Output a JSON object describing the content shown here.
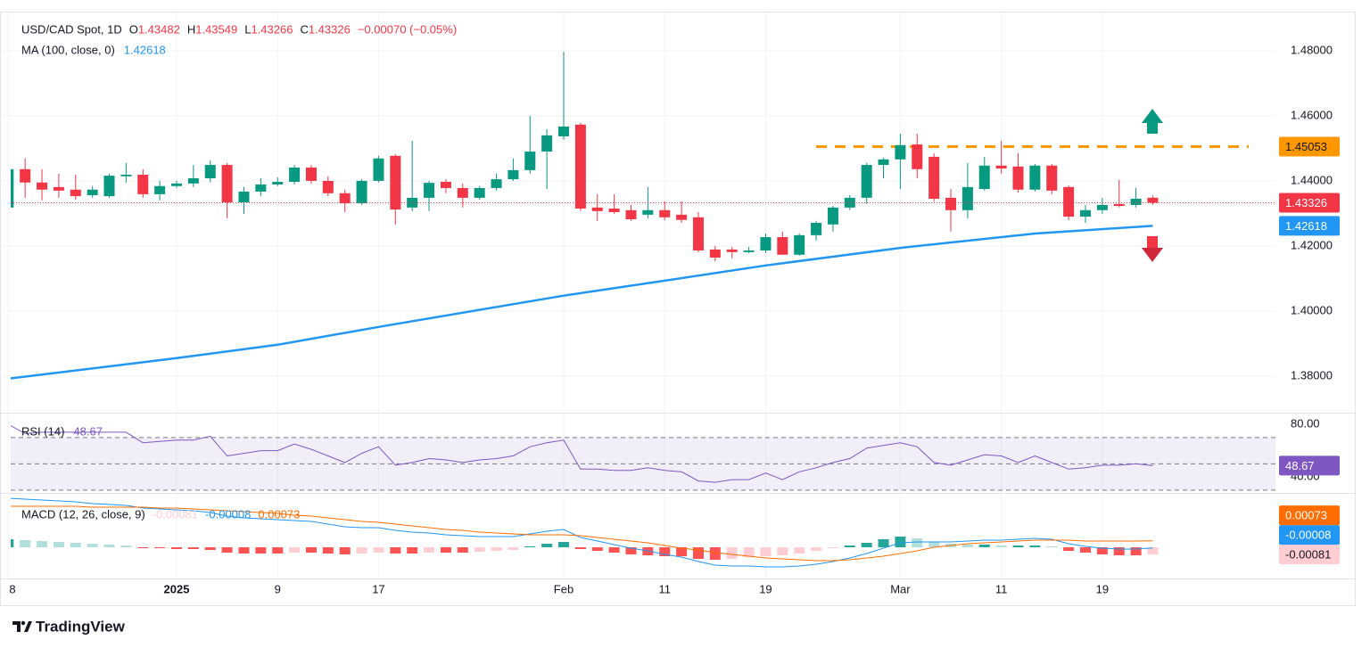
{
  "chart_data": [
    {
      "type": "candlestick",
      "title": "USD/CAD Spot, 1D",
      "ohlc_prefixes": [
        "O",
        "H",
        "L",
        "C"
      ],
      "change_label": "−0.00070 (−0.05%)",
      "categories": [
        "8",
        null,
        null,
        null,
        null,
        null,
        null,
        null,
        null,
        null,
        "2025",
        null,
        null,
        null,
        null,
        null,
        "9",
        null,
        null,
        null,
        null,
        null,
        "17",
        null,
        null,
        null,
        null,
        null,
        null,
        null,
        null,
        null,
        null,
        "Feb",
        null,
        null,
        null,
        null,
        null,
        "11",
        null,
        null,
        null,
        null,
        null,
        "19",
        null,
        null,
        null,
        null,
        null,
        null,
        null,
        "Mar",
        null,
        null,
        null,
        null,
        null,
        "11",
        null,
        null,
        null,
        null,
        null,
        "19",
        null,
        null,
        null
      ],
      "open": [
        1.4318,
        1.4436,
        1.4395,
        1.4381,
        1.4373,
        1.4356,
        1.4353,
        1.4414,
        1.4419,
        1.4359,
        1.4384,
        1.4392,
        1.4408,
        1.4449,
        1.4334,
        1.4367,
        1.4389,
        1.4397,
        1.4441,
        1.44,
        1.4362,
        1.4331,
        1.44,
        1.4477,
        1.4318,
        1.4348,
        1.4397,
        1.4378,
        1.4348,
        1.4378,
        1.4405,
        1.4433,
        1.449,
        1.4537,
        1.4573,
        1.4318,
        1.4315,
        1.431,
        1.4296,
        1.431,
        1.4296,
        1.4288,
        1.4189,
        1.4189,
        1.4181,
        1.4186,
        1.4227,
        1.4173,
        1.4233,
        1.4266,
        1.4318,
        1.4348,
        1.4449,
        1.4466,
        1.4512,
        1.4474,
        1.4348,
        1.431,
        1.4375,
        1.4447,
        1.4444,
        1.4373,
        1.4447,
        1.4381,
        1.429,
        1.431,
        1.4329,
        1.4326,
        1.43482
      ],
      "high": [
        1.4445,
        1.4469,
        1.4436,
        1.4422,
        1.4419,
        1.4384,
        1.4422,
        1.4455,
        1.4436,
        1.44,
        1.44,
        1.4449,
        1.4463,
        1.4455,
        1.4381,
        1.4408,
        1.4411,
        1.4449,
        1.4449,
        1.4414,
        1.4373,
        1.4405,
        1.4477,
        1.4482,
        1.4523,
        1.44,
        1.4405,
        1.4392,
        1.4384,
        1.4422,
        1.4469,
        1.46,
        1.4559,
        1.4797,
        1.4578,
        1.4359,
        1.4359,
        1.4326,
        1.4381,
        1.4337,
        1.4337,
        1.4304,
        1.42,
        1.4197,
        1.4197,
        1.4238,
        1.4244,
        1.4238,
        1.4277,
        1.4323,
        1.4356,
        1.4455,
        1.4471,
        1.4545,
        1.4545,
        1.4485,
        1.4375,
        1.4455,
        1.4474,
        1.4523,
        1.4485,
        1.4452,
        1.4452,
        1.4386,
        1.4326,
        1.4348,
        1.4403,
        1.4378,
        1.43549
      ],
      "low": [
        1.431,
        1.4348,
        1.434,
        1.4348,
        1.4342,
        1.4348,
        1.4348,
        1.4395,
        1.4348,
        1.434,
        1.4378,
        1.4381,
        1.4395,
        1.4285,
        1.4299,
        1.4353,
        1.4384,
        1.4389,
        1.4392,
        1.4353,
        1.4304,
        1.4326,
        1.4395,
        1.4266,
        1.4307,
        1.4307,
        1.4362,
        1.4318,
        1.4342,
        1.437,
        1.44,
        1.4422,
        1.4375,
        1.4526,
        1.4307,
        1.4277,
        1.4299,
        1.4277,
        1.4285,
        1.4279,
        1.4271,
        1.4181,
        1.4153,
        1.4162,
        1.4178,
        1.4178,
        1.4173,
        1.417,
        1.4216,
        1.4244,
        1.431,
        1.4329,
        1.4408,
        1.4375,
        1.4408,
        1.4337,
        1.4244,
        1.4285,
        1.437,
        1.4422,
        1.4364,
        1.4367,
        1.4359,
        1.4279,
        1.4271,
        1.4299,
        1.4318,
        1.4318,
        1.43266
      ],
      "close": [
        1.4436,
        1.4395,
        1.4373,
        1.437,
        1.4353,
        1.4373,
        1.4416,
        1.4419,
        1.4359,
        1.4384,
        1.4392,
        1.4408,
        1.4449,
        1.4334,
        1.4367,
        1.4389,
        1.4397,
        1.4441,
        1.44,
        1.4362,
        1.4331,
        1.44,
        1.4469,
        1.4312,
        1.4348,
        1.4394,
        1.4378,
        1.4348,
        1.4378,
        1.4405,
        1.4433,
        1.449,
        1.454,
        1.4567,
        1.4315,
        1.4307,
        1.4304,
        1.4282,
        1.431,
        1.4288,
        1.428,
        1.4186,
        1.4164,
        1.4181,
        1.4186,
        1.4227,
        1.4173,
        1.4233,
        1.4271,
        1.4318,
        1.4348,
        1.4449,
        1.4466,
        1.451,
        1.4436,
        1.4345,
        1.431,
        1.4381,
        1.4447,
        1.4438,
        1.4373,
        1.4447,
        1.437,
        1.429,
        1.431,
        1.4326,
        1.4323,
        1.4345,
        1.43326
      ],
      "up_color": "#089981",
      "down_color": "#f23645",
      "series": [
        {
          "name": "MA (100, close, 0)",
          "color": "#2196f3",
          "x": [
            0,
            10,
            16,
            22,
            33,
            39,
            45,
            53,
            61,
            68
          ],
          "values": [
            1.3792,
            1.3855,
            1.3896,
            1.3951,
            1.4047,
            1.4093,
            1.414,
            1.4194,
            1.4238,
            1.42618
          ]
        }
      ],
      "level": {
        "value": 1.45053,
        "color": "#ff9800"
      },
      "ylim": [
        1.369,
        1.4915
      ],
      "yticks": [
        {
          "value": 1.38,
          "label": "1.38000"
        },
        {
          "value": 1.4,
          "label": "1.40000"
        },
        {
          "value": 1.42,
          "label": "1.42000"
        },
        {
          "value": 1.44,
          "label": "1.44000"
        },
        {
          "value": 1.46,
          "label": "1.46000"
        },
        {
          "value": 1.48,
          "label": "1.48000"
        }
      ],
      "grid": true
    },
    {
      "type": "rsi",
      "series": [
        {
          "name": "RSI (14)",
          "color": "#7e57c2",
          "values": [
            80,
            73,
            74,
            74,
            74,
            74,
            74,
            74,
            66,
            67,
            68,
            68,
            71,
            56,
            58,
            60,
            60,
            65,
            61,
            56,
            51,
            58,
            63,
            49,
            51,
            54,
            53,
            51,
            53,
            54,
            56,
            63,
            66,
            68,
            46,
            46,
            45,
            45,
            47,
            45,
            44,
            37,
            36,
            38,
            38,
            43,
            38,
            44,
            47,
            51,
            54,
            62,
            64,
            66,
            63,
            51,
            49,
            53,
            57,
            56,
            51,
            56,
            51,
            46,
            47,
            49,
            49,
            50,
            48.67
          ]
        }
      ],
      "levels": [
        70,
        50,
        30
      ],
      "ylim": [
        28.6,
        87.5
      ],
      "yticks": [
        {
          "value": 40,
          "label": "40.00"
        },
        {
          "value": 80,
          "label": "80.00"
        }
      ]
    },
    {
      "type": "macd",
      "title": "MACD (12, 26, close, 9)",
      "series": [
        {
          "kind": "histogram",
          "colors": [
            "#26a69a",
            "#b2dfdb",
            "#ff5252",
            "#ffcdd2"
          ],
          "values": [
            0.0009,
            0.0008,
            0.0007,
            0.0006,
            0.0005,
            0.0004,
            0.0003,
            0.0002,
            -0.0001,
            -0.0001,
            -0.0002,
            -0.0002,
            -0.0003,
            -0.0006,
            -0.0007,
            -0.0007,
            -0.0007,
            -0.0006,
            -0.0006,
            -0.0007,
            -0.0008,
            -0.0007,
            -0.0006,
            -0.0007,
            -0.0007,
            -0.0006,
            -0.0006,
            -0.0006,
            -0.0005,
            -0.0004,
            -0.0003,
            0.0001,
            0.0004,
            0.0006,
            -0.0002,
            -0.0004,
            -0.0006,
            -0.0008,
            -0.0009,
            -0.001,
            -0.001,
            -0.0013,
            -0.0014,
            -0.0013,
            -0.0011,
            -0.001,
            -0.0009,
            -0.0007,
            -0.0004,
            -0.0001,
            0.0002,
            0.0005,
            0.0009,
            0.0012,
            0.001,
            0.0006,
            0.0004,
            0.0003,
            0.0003,
            0.0002,
            0.0002,
            0.0002,
            0.0001,
            -0.0004,
            -0.0006,
            -0.0008,
            -0.0009,
            -0.0009,
            -0.00081
          ]
        },
        {
          "kind": "line",
          "color": "#2196f3",
          "values": [
            0.0055,
            0.0054,
            0.0053,
            0.0052,
            0.0051,
            0.0049,
            0.0048,
            0.0047,
            0.0044,
            0.0043,
            0.0042,
            0.0041,
            0.0039,
            0.0035,
            0.0033,
            0.0032,
            0.0031,
            0.003,
            0.0029,
            0.0026,
            0.0023,
            0.0022,
            0.0022,
            0.0019,
            0.0017,
            0.0016,
            0.0014,
            0.0013,
            0.0012,
            0.0012,
            0.0012,
            0.0015,
            0.0018,
            0.002,
            0.0011,
            0.0007,
            0.0003,
            -0.0001,
            -0.0004,
            -0.0008,
            -0.0011,
            -0.0016,
            -0.002,
            -0.0021,
            -0.0021,
            -0.0022,
            -0.0022,
            -0.0021,
            -0.0019,
            -0.0016,
            -0.0012,
            -0.0007,
            -0.0001,
            0.0005,
            0.0006,
            0.0006,
            0.0006,
            0.0007,
            0.0008,
            0.0008,
            0.0009,
            0.001,
            0.0009,
            0.0004,
            0.0001,
            -0.0001,
            -0.0002,
            -0.0002,
            -8e-05
          ]
        },
        {
          "kind": "line",
          "color": "#ff6d00",
          "values": [
            0.0046,
            0.0046,
            0.0046,
            0.0046,
            0.0046,
            0.0045,
            0.0045,
            0.0045,
            0.0045,
            0.0044,
            0.0044,
            0.0043,
            0.0042,
            0.0041,
            0.004,
            0.0039,
            0.0038,
            0.0036,
            0.0035,
            0.0033,
            0.0031,
            0.0029,
            0.0028,
            0.0026,
            0.0024,
            0.0022,
            0.002,
            0.0019,
            0.0017,
            0.0016,
            0.0015,
            0.0014,
            0.0014,
            0.0014,
            0.0013,
            0.0011,
            0.0009,
            0.0007,
            0.0005,
            0.0002,
            -0.0001,
            -0.0003,
            -0.0006,
            -0.0008,
            -0.001,
            -0.0012,
            -0.0013,
            -0.0014,
            -0.0015,
            -0.0015,
            -0.0014,
            -0.0012,
            -0.001,
            -0.0007,
            -0.0004,
            0.0,
            0.0002,
            0.0004,
            0.0005,
            0.0006,
            0.0007,
            0.0008,
            0.0008,
            0.0008,
            0.0007,
            0.0007,
            0.0007,
            0.0007,
            0.00073
          ]
        }
      ],
      "ylim": [
        -0.0034,
        0.0059
      ]
    },
    {
      "brand": "TradingView"
    }
  ]
}
